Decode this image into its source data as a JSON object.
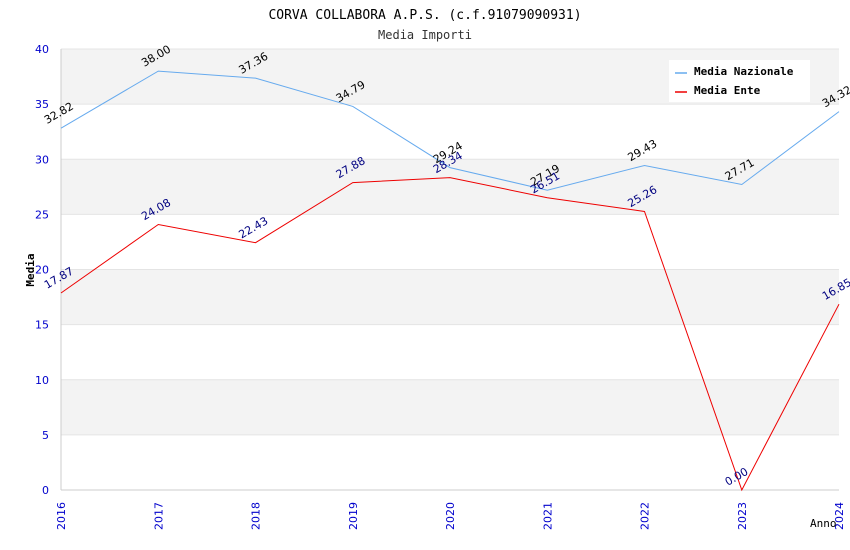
{
  "chart_data": {
    "type": "line",
    "title": "CORVA COLLABORA A.P.S. (c.f.91079090931)",
    "subtitle": "Media Importi",
    "xlabel": "Anno",
    "ylabel": "Media",
    "x": [
      "2016",
      "2017",
      "2018",
      "2019",
      "2020",
      "2021",
      "2022",
      "2023",
      "2024"
    ],
    "ylim": [
      0,
      40
    ],
    "yticks": [
      "0",
      "5",
      "10",
      "15",
      "20",
      "25",
      "30",
      "35",
      "40"
    ],
    "grid": "horizontal alternating bands",
    "legend_position": "top-right",
    "series": [
      {
        "name": "Media Nazionale",
        "color": "#66aaee",
        "label_color": "#000000",
        "values": [
          32.82,
          38.0,
          37.36,
          34.79,
          29.24,
          27.19,
          29.43,
          27.71,
          34.32
        ],
        "labels": [
          "32.82",
          "38.00",
          "37.36",
          "34.79",
          "29.24",
          "27.19",
          "29.43",
          "27.71",
          "34.32"
        ]
      },
      {
        "name": "Media Ente",
        "color": "#ee0000",
        "label_color": "#000080",
        "values": [
          17.87,
          24.08,
          22.43,
          27.88,
          28.34,
          26.51,
          25.26,
          0.0,
          16.85
        ],
        "labels": [
          "17.87",
          "24.08",
          "22.43",
          "27.88",
          "28.34",
          "26.51",
          "25.26",
          "0.00",
          "16.85"
        ]
      }
    ]
  }
}
